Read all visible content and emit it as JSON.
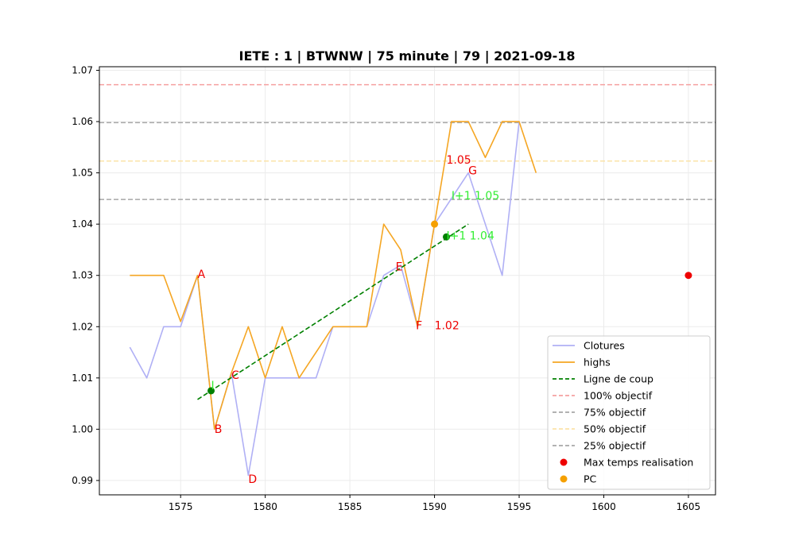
{
  "chart_data": {
    "type": "line",
    "title": "IETE : 1 | BTWNW | 75 minute | 79 | 2021-09-18",
    "xlabel": "",
    "ylabel": "",
    "xlim": [
      1570.2,
      1606.6
    ],
    "ylim": [
      0.9872,
      1.0707
    ],
    "x_ticks": [
      1575,
      1580,
      1585,
      1590,
      1595,
      1600,
      1605
    ],
    "y_ticks": [
      0.99,
      1.0,
      1.01,
      1.02,
      1.03,
      1.04,
      1.05,
      1.06,
      1.07
    ],
    "x_tick_labels": [
      "1575",
      "1580",
      "1585",
      "1590",
      "1595",
      "1600",
      "1605"
    ],
    "y_tick_labels": [
      "0.99",
      "1.00",
      "1.01",
      "1.02",
      "1.03",
      "1.04",
      "1.05",
      "1.06",
      "1.07"
    ],
    "grid": true,
    "legend_position": "lower-right",
    "series": [
      {
        "name": "Clotures",
        "color": "#b0b0f5",
        "style": "solid",
        "x": [
          1572,
          1573,
          1574,
          1575,
          1576,
          1577,
          1578,
          1579,
          1580,
          1581,
          1582,
          1583,
          1584,
          1585,
          1586,
          1587,
          1588,
          1589,
          1590,
          1591,
          1592,
          1593,
          1594,
          1595
        ],
        "y": [
          1.016,
          1.01,
          1.02,
          1.02,
          1.03,
          1.0,
          1.011,
          0.991,
          1.01,
          1.01,
          1.01,
          1.01,
          1.02,
          1.02,
          1.02,
          1.03,
          1.032,
          1.02,
          1.04,
          1.045,
          1.05,
          1.04,
          1.03,
          1.06
        ]
      },
      {
        "name": "highs",
        "color": "#f5a623",
        "style": "solid",
        "x": [
          1572,
          1573,
          1574,
          1575,
          1576,
          1577,
          1578,
          1579,
          1580,
          1581,
          1582,
          1583,
          1584,
          1585,
          1586,
          1587,
          1588,
          1589,
          1590,
          1591,
          1592,
          1593,
          1594,
          1595,
          1596
        ],
        "y": [
          1.03,
          1.03,
          1.03,
          1.021,
          1.03,
          1.0,
          1.011,
          1.02,
          1.01,
          1.02,
          1.01,
          1.015,
          1.02,
          1.02,
          1.02,
          1.04,
          1.035,
          1.02,
          1.04,
          1.06,
          1.06,
          1.053,
          1.06,
          1.06,
          1.05
        ]
      },
      {
        "name": "Ligne de coup",
        "color": "#008000",
        "style": "dashed",
        "x": [
          1576,
          1592
        ],
        "y": [
          1.0058,
          1.04
        ]
      }
    ],
    "hlines": [
      {
        "name": "100% objectif",
        "y": 1.0672,
        "color": "#f5a0a0"
      },
      {
        "name": "75% objectif",
        "y": 1.0598,
        "color": "#a8a8a8"
      },
      {
        "name": "50% objectif",
        "y": 1.0523,
        "color": "#fbe3a8"
      },
      {
        "name": "25% objectif",
        "y": 1.0448,
        "color": "#a8a8a8"
      }
    ],
    "scatter": [
      {
        "name": "Max temps realisation",
        "color": "#ee0000",
        "points": [
          [
            1605,
            1.03
          ]
        ]
      },
      {
        "name": "PC",
        "color": "#f5a000",
        "points": [
          [
            1590,
            1.04
          ]
        ]
      }
    ],
    "green_points": [
      [
        1576.8,
        1.0075
      ],
      [
        1590.7,
        1.0375
      ]
    ],
    "annotations": [
      {
        "text": "A",
        "x": 1576.0,
        "y": 1.0295,
        "color": "#ee0000"
      },
      {
        "text": "B",
        "x": 1577.0,
        "y": 0.9993,
        "color": "#ee0000"
      },
      {
        "text": "C",
        "x": 1578.0,
        "y": 1.0098,
        "color": "#ee0000"
      },
      {
        "text": "D",
        "x": 1579.0,
        "y": 0.9895,
        "color": "#ee0000"
      },
      {
        "text": "E",
        "x": 1587.7,
        "y": 1.031,
        "color": "#ee0000"
      },
      {
        "text": "F",
        "x": 1588.9,
        "y": 1.0195,
        "color": "#ee0000"
      },
      {
        "text": "G",
        "x": 1592.0,
        "y": 1.0497,
        "color": "#ee0000"
      },
      {
        "text": "1.02",
        "x": 1590.0,
        "y": 1.0195,
        "color": "#ee0000"
      },
      {
        "text": "1.05",
        "x": 1590.7,
        "y": 1.0518,
        "color": "#ee0000"
      },
      {
        "text": "I",
        "x": 1576.8,
        "y": 1.0078,
        "color": "#33ee33"
      },
      {
        "text": "I+1 1.04",
        "x": 1590.7,
        "y": 1.037,
        "color": "#33ee33"
      },
      {
        "text": "I+1 1.05",
        "x": 1591.0,
        "y": 1.0448,
        "color": "#33ee33"
      }
    ]
  }
}
